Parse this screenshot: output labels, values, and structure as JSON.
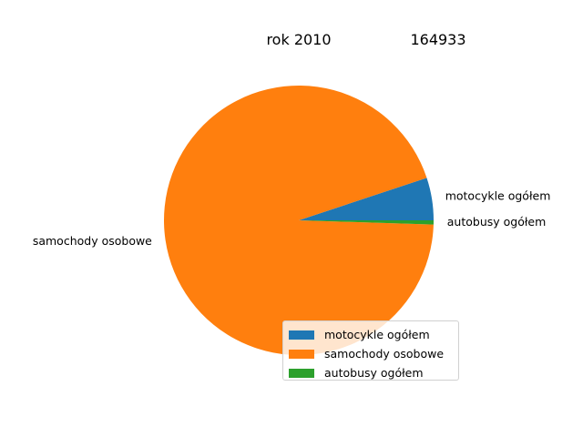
{
  "chart_data": {
    "type": "pie",
    "title_left": "rok 2010",
    "title_right": "164933",
    "categories": [
      "motocykle ogółem",
      "samochody osobowe",
      "autobusy ogółem"
    ],
    "values": [
      5.1,
      94.4,
      0.5
    ],
    "colors": [
      "#1f77b4",
      "#ff7f0e",
      "#2ca02c"
    ],
    "start_angle_deg": 0,
    "direction": "counterclockwise",
    "legend_position": "lower-right"
  }
}
